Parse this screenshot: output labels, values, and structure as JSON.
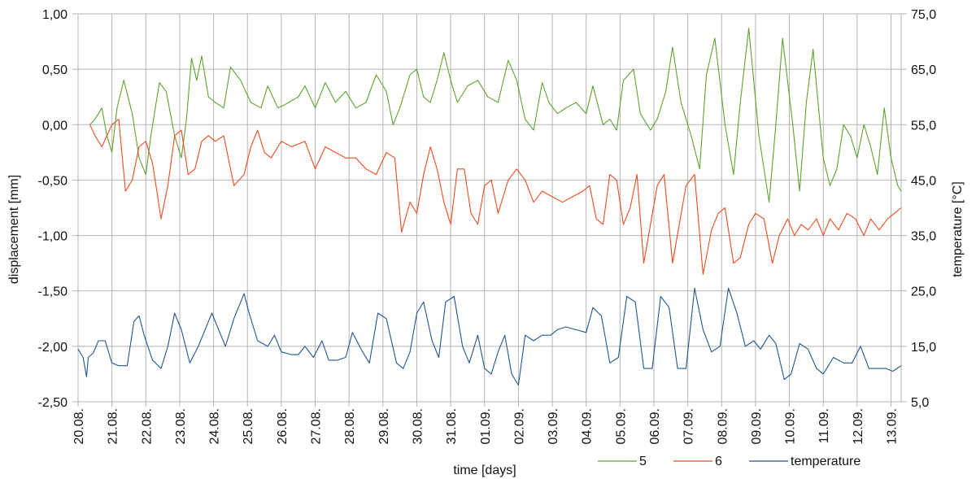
{
  "chart_data": {
    "type": "line",
    "xlabel": "time [days]",
    "ylabel_left": "displacement [mm]",
    "ylabel_right": "temperature [°C]",
    "x_ticks": [
      "20.08.",
      "21.08.",
      "22.08.",
      "23.08.",
      "24.08.",
      "25.08.",
      "26.08.",
      "27.08.",
      "28.08.",
      "29.08.",
      "30.08.",
      "31.08.",
      "01.09.",
      "02.09.",
      "03.09.",
      "04.09.",
      "05.09.",
      "06.09.",
      "07.09.",
      "08.09.",
      "09.09.",
      "10.09.",
      "11.09.",
      "12.09.",
      "13.09."
    ],
    "y_left_ticks": [
      "1,00",
      "0,50",
      "0,00",
      "-0,50",
      "-1,00",
      "-1,50",
      "-2,00",
      "-2,50"
    ],
    "y_right_ticks": [
      "75,0",
      "65,0",
      "55,0",
      "45,0",
      "35,0",
      "25,0",
      "15,0",
      "5,0"
    ],
    "xlim": [
      0,
      24.3
    ],
    "ylim_left": [
      -2.5,
      1.0
    ],
    "ylim_right": [
      5,
      75
    ],
    "grid": true,
    "legend_position": "bottom-right",
    "series": [
      {
        "name": "5",
        "axis": "left",
        "color": "#5ea22f",
        "x": [
          0.35,
          0.5,
          0.7,
          0.85,
          1.0,
          1.15,
          1.35,
          1.6,
          1.8,
          2.0,
          2.15,
          2.4,
          2.6,
          2.85,
          3.05,
          3.2,
          3.35,
          3.5,
          3.65,
          3.85,
          4.05,
          4.3,
          4.5,
          4.8,
          5.1,
          5.4,
          5.6,
          5.9,
          6.1,
          6.5,
          6.7,
          7.0,
          7.3,
          7.6,
          7.9,
          8.2,
          8.5,
          8.8,
          9.1,
          9.3,
          9.5,
          9.8,
          10.0,
          10.2,
          10.4,
          10.6,
          10.8,
          11.0,
          11.2,
          11.5,
          11.8,
          12.1,
          12.4,
          12.7,
          12.95,
          13.2,
          13.45,
          13.7,
          13.9,
          14.15,
          14.4,
          14.7,
          15.0,
          15.2,
          15.5,
          15.7,
          15.9,
          16.1,
          16.4,
          16.6,
          16.9,
          17.1,
          17.35,
          17.55,
          17.8,
          18.1,
          18.35,
          18.55,
          18.8,
          19.1,
          19.35,
          19.55,
          19.8,
          20.1,
          20.4,
          20.6,
          20.8,
          21.1,
          21.3,
          21.5,
          21.7,
          22.0,
          22.2,
          22.4,
          22.6,
          22.8,
          23.0,
          23.2,
          23.4,
          23.6,
          23.8,
          24.0,
          24.2,
          24.3
        ],
        "y": [
          0.0,
          0.05,
          0.15,
          -0.1,
          -0.25,
          0.15,
          0.4,
          0.1,
          -0.3,
          -0.45,
          -0.1,
          0.38,
          0.3,
          -0.1,
          -0.3,
          0.05,
          0.6,
          0.4,
          0.62,
          0.25,
          0.2,
          0.15,
          0.52,
          0.4,
          0.2,
          0.15,
          0.35,
          0.15,
          0.18,
          0.25,
          0.35,
          0.15,
          0.38,
          0.2,
          0.3,
          0.15,
          0.2,
          0.45,
          0.3,
          0.0,
          0.15,
          0.45,
          0.5,
          0.25,
          0.2,
          0.4,
          0.65,
          0.4,
          0.2,
          0.35,
          0.4,
          0.25,
          0.2,
          0.58,
          0.4,
          0.05,
          -0.05,
          0.38,
          0.2,
          0.1,
          0.15,
          0.2,
          0.1,
          0.35,
          0.0,
          0.05,
          -0.05,
          0.4,
          0.5,
          0.1,
          -0.05,
          0.05,
          0.3,
          0.7,
          0.2,
          -0.1,
          -0.4,
          0.45,
          0.78,
          0.0,
          -0.45,
          0.2,
          0.87,
          -0.1,
          -0.7,
          0.0,
          0.78,
          0.0,
          -0.6,
          0.2,
          0.68,
          -0.3,
          -0.55,
          -0.4,
          0.0,
          -0.1,
          -0.3,
          0.0,
          -0.2,
          -0.45,
          0.15,
          -0.3,
          -0.55,
          -0.6
        ]
      },
      {
        "name": "6",
        "axis": "left",
        "color": "#f04a1d",
        "x": [
          0.35,
          0.5,
          0.7,
          0.85,
          1.0,
          1.2,
          1.4,
          1.6,
          1.8,
          2.0,
          2.2,
          2.45,
          2.65,
          2.85,
          3.05,
          3.25,
          3.45,
          3.65,
          3.85,
          4.05,
          4.3,
          4.6,
          4.9,
          5.1,
          5.3,
          5.5,
          5.7,
          6.0,
          6.3,
          6.7,
          7.0,
          7.3,
          7.6,
          7.9,
          8.2,
          8.5,
          8.8,
          9.1,
          9.35,
          9.55,
          9.8,
          10.0,
          10.2,
          10.4,
          10.6,
          10.8,
          11.0,
          11.2,
          11.4,
          11.6,
          11.8,
          12.0,
          12.2,
          12.4,
          12.7,
          12.95,
          13.2,
          13.45,
          13.7,
          14.0,
          14.3,
          14.6,
          14.9,
          15.1,
          15.3,
          15.5,
          15.7,
          15.9,
          16.1,
          16.3,
          16.5,
          16.7,
          16.9,
          17.1,
          17.3,
          17.55,
          17.75,
          17.95,
          18.2,
          18.45,
          18.7,
          18.9,
          19.1,
          19.35,
          19.55,
          19.8,
          20.0,
          20.25,
          20.5,
          20.7,
          20.95,
          21.15,
          21.35,
          21.55,
          21.8,
          22.0,
          22.2,
          22.45,
          22.7,
          22.95,
          23.2,
          23.4,
          23.65,
          23.9,
          24.1,
          24.3
        ],
        "y": [
          0.0,
          -0.1,
          -0.2,
          -0.1,
          0.0,
          0.05,
          -0.6,
          -0.5,
          -0.2,
          -0.15,
          -0.35,
          -0.85,
          -0.55,
          -0.1,
          -0.05,
          -0.45,
          -0.4,
          -0.15,
          -0.1,
          -0.15,
          -0.1,
          -0.55,
          -0.45,
          -0.2,
          -0.05,
          -0.25,
          -0.3,
          -0.15,
          -0.2,
          -0.15,
          -0.4,
          -0.2,
          -0.25,
          -0.3,
          -0.3,
          -0.4,
          -0.45,
          -0.25,
          -0.3,
          -0.97,
          -0.7,
          -0.8,
          -0.45,
          -0.2,
          -0.4,
          -0.7,
          -0.9,
          -0.4,
          -0.4,
          -0.8,
          -0.9,
          -0.55,
          -0.5,
          -0.8,
          -0.5,
          -0.4,
          -0.5,
          -0.7,
          -0.6,
          -0.65,
          -0.7,
          -0.65,
          -0.6,
          -0.55,
          -0.85,
          -0.9,
          -0.45,
          -0.5,
          -0.9,
          -0.75,
          -0.45,
          -1.25,
          -0.9,
          -0.55,
          -0.45,
          -1.25,
          -0.9,
          -0.55,
          -0.45,
          -1.35,
          -0.95,
          -0.8,
          -0.75,
          -1.25,
          -1.2,
          -0.9,
          -0.8,
          -0.85,
          -1.25,
          -1.0,
          -0.85,
          -1.0,
          -0.9,
          -0.95,
          -0.85,
          -1.0,
          -0.85,
          -0.95,
          -0.8,
          -0.85,
          -1.0,
          -0.85,
          -0.95,
          -0.85,
          -0.8,
          -0.75
        ]
      },
      {
        "name": "temperature",
        "axis": "right",
        "color": "#215592",
        "x": [
          0.0,
          0.15,
          0.25,
          0.3,
          0.45,
          0.6,
          0.8,
          1.0,
          1.2,
          1.45,
          1.65,
          1.8,
          1.95,
          2.2,
          2.45,
          2.65,
          2.85,
          3.05,
          3.3,
          3.55,
          3.75,
          3.95,
          4.15,
          4.35,
          4.6,
          4.9,
          5.05,
          5.3,
          5.6,
          5.8,
          6.0,
          6.3,
          6.5,
          6.7,
          6.95,
          7.2,
          7.4,
          7.65,
          7.9,
          8.1,
          8.4,
          8.6,
          8.85,
          9.1,
          9.4,
          9.6,
          9.8,
          10.0,
          10.2,
          10.45,
          10.65,
          10.85,
          11.1,
          11.35,
          11.55,
          11.8,
          12.0,
          12.2,
          12.4,
          12.6,
          12.8,
          13.0,
          13.2,
          13.45,
          13.7,
          13.95,
          14.15,
          14.4,
          14.7,
          15.0,
          15.2,
          15.45,
          15.7,
          15.95,
          16.2,
          16.45,
          16.7,
          16.95,
          17.2,
          17.45,
          17.7,
          17.95,
          18.2,
          18.45,
          18.7,
          18.95,
          19.2,
          19.45,
          19.7,
          19.95,
          20.15,
          20.4,
          20.6,
          20.85,
          21.05,
          21.3,
          21.55,
          21.8,
          22.0,
          22.3,
          22.6,
          22.85,
          23.1,
          23.35,
          23.6,
          23.85,
          24.05,
          24.3
        ],
        "y": [
          14.5,
          13.0,
          9.5,
          13.0,
          13.8,
          16.0,
          16.0,
          12.0,
          11.5,
          11.5,
          19.5,
          20.5,
          17.0,
          12.5,
          11.0,
          15.0,
          21.0,
          18.0,
          12.0,
          15.0,
          18.0,
          21.0,
          18.0,
          15.0,
          20.0,
          24.5,
          21.0,
          16.0,
          15.0,
          17.0,
          14.0,
          13.5,
          13.5,
          15.0,
          13.0,
          16.0,
          12.5,
          12.5,
          13.0,
          17.5,
          14.0,
          12.0,
          21.0,
          20.0,
          12.0,
          11.0,
          14.0,
          21.0,
          23.0,
          16.0,
          13.0,
          23.0,
          24.0,
          15.0,
          12.0,
          17.0,
          11.0,
          10.0,
          14.0,
          17.0,
          10.0,
          8.0,
          17.0,
          16.0,
          17.0,
          17.0,
          18.0,
          18.5,
          18.0,
          17.5,
          22.0,
          20.5,
          12.0,
          13.0,
          24.0,
          23.0,
          11.0,
          11.0,
          24.0,
          22.0,
          11.0,
          11.0,
          25.5,
          18.0,
          14.0,
          15.0,
          25.5,
          21.0,
          15.0,
          16.0,
          14.5,
          17.0,
          15.5,
          9.0,
          10.0,
          15.5,
          14.5,
          11.0,
          10.0,
          13.0,
          12.0,
          12.0,
          15.0,
          11.0,
          11.0,
          11.0,
          10.5,
          11.5
        ]
      }
    ]
  }
}
